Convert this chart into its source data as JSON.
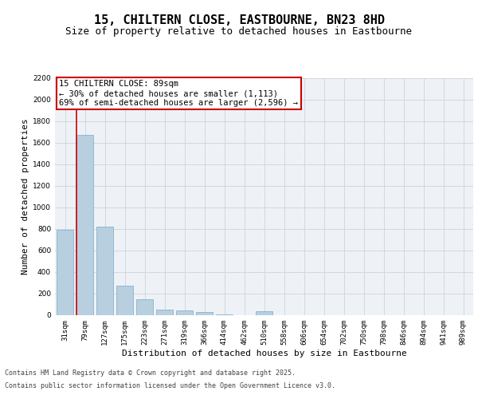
{
  "title_line1": "15, CHILTERN CLOSE, EASTBOURNE, BN23 8HD",
  "title_line2": "Size of property relative to detached houses in Eastbourne",
  "xlabel": "Distribution of detached houses by size in Eastbourne",
  "ylabel": "Number of detached properties",
  "categories": [
    "31sqm",
    "79sqm",
    "127sqm",
    "175sqm",
    "223sqm",
    "271sqm",
    "319sqm",
    "366sqm",
    "414sqm",
    "462sqm",
    "510sqm",
    "558sqm",
    "606sqm",
    "654sqm",
    "702sqm",
    "750sqm",
    "798sqm",
    "846sqm",
    "894sqm",
    "941sqm",
    "989sqm"
  ],
  "values": [
    790,
    1670,
    820,
    270,
    150,
    55,
    45,
    30,
    10,
    0,
    40,
    0,
    0,
    0,
    0,
    0,
    0,
    0,
    0,
    0,
    0
  ],
  "bar_color": "#b8cfe0",
  "bar_edge_color": "#7aaac8",
  "property_line_color": "#cc0000",
  "annotation_text": "15 CHILTERN CLOSE: 89sqm\n← 30% of detached houses are smaller (1,113)\n69% of semi-detached houses are larger (2,596) →",
  "annotation_box_color": "#ffffff",
  "annotation_box_edge": "#cc0000",
  "ylim": [
    0,
    2200
  ],
  "yticks": [
    0,
    200,
    400,
    600,
    800,
    1000,
    1200,
    1400,
    1600,
    1800,
    2000,
    2200
  ],
  "grid_color": "#d0d8e0",
  "background_color": "#eef2f7",
  "footer_line1": "Contains HM Land Registry data © Crown copyright and database right 2025.",
  "footer_line2": "Contains public sector information licensed under the Open Government Licence v3.0.",
  "title_fontsize": 11,
  "subtitle_fontsize": 9,
  "tick_fontsize": 6.5,
  "label_fontsize": 8,
  "footer_fontsize": 6
}
